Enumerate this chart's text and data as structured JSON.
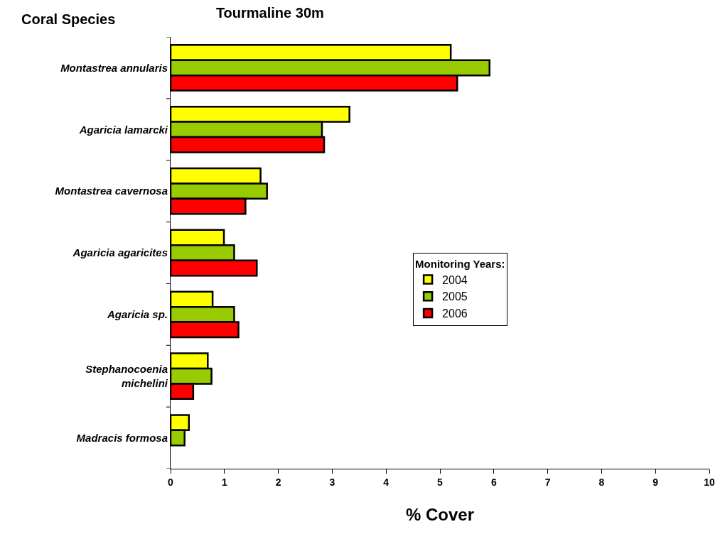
{
  "chart_data": {
    "type": "bar",
    "orientation": "horizontal",
    "title": "Tourmaline 30m",
    "xlabel": "% Cover",
    "ylabel": "Coral Species",
    "legend_title": "Monitoring Years:",
    "categories": [
      "Montastrea annularis",
      "Agaricia lamarcki",
      "Montastrea cavernosa",
      "Agaricia agaricites",
      "Agaricia sp.",
      "Stephanocoenia michelini",
      "Madracis formosa"
    ],
    "series": [
      {
        "name": "2004",
        "color": "#ffff00",
        "values": [
          5.2,
          3.32,
          1.67,
          0.99,
          0.78,
          0.69,
          0.34
        ]
      },
      {
        "name": "2005",
        "color": "#99cc00",
        "values": [
          5.92,
          2.81,
          1.79,
          1.18,
          1.18,
          0.76,
          0.26
        ]
      },
      {
        "name": "2006",
        "color": "#ff0000",
        "values": [
          5.32,
          2.85,
          1.39,
          1.6,
          1.26,
          0.42,
          null
        ]
      }
    ],
    "xlim": [
      0,
      10
    ],
    "xticks": [
      0,
      1,
      2,
      3,
      4,
      5,
      6,
      7,
      8,
      9,
      10
    ],
    "grid": false,
    "legend": "right"
  }
}
